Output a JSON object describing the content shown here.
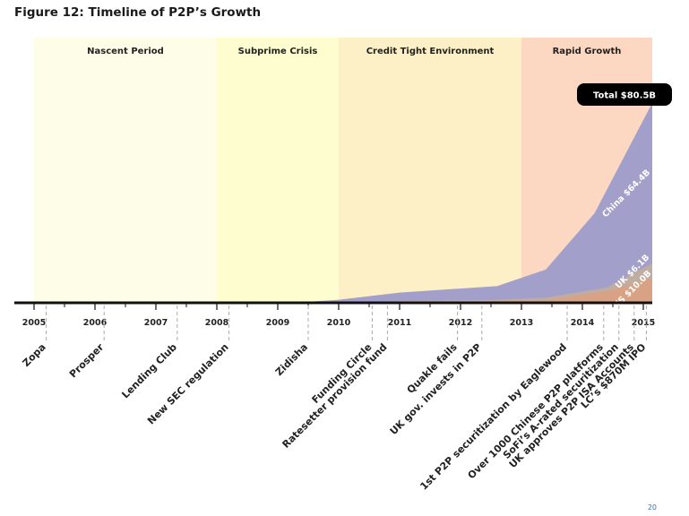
{
  "title": "Figure 12: Timeline of P2P’s Growth",
  "page_number": "20",
  "chart_data": {
    "type": "area",
    "title": "Figure 12: Timeline of P2P’s Growth",
    "xlabel": "",
    "ylabel": "",
    "xlim": [
      2005,
      2015.2
    ],
    "x_ticks": [
      "2005",
      "2006",
      "2007",
      "2008",
      "2009",
      "2010",
      "2011",
      "2012",
      "2013",
      "2014",
      "2015"
    ],
    "periods": [
      {
        "label": "Nascent Period",
        "start": 2005,
        "end": 2008,
        "color": "#fefde8"
      },
      {
        "label": "Subprime Crisis",
        "start": 2008,
        "end": 2010,
        "color": "#fdfdd0"
      },
      {
        "label": "Credit Tight Environment",
        "start": 2010,
        "end": 2013,
        "color": "#fdf0c6"
      },
      {
        "label": "Rapid Growth",
        "start": 2013,
        "end": 2015.2,
        "color": "#fcd8c3"
      }
    ],
    "series_stack_order": [
      "US",
      "UK",
      "China"
    ],
    "series": [
      {
        "name": "US $10.0B",
        "color": "#d9a284",
        "points": [
          [
            2009.25,
            0
          ],
          [
            2010.6,
            0.2
          ],
          [
            2012.6,
            0.6
          ],
          [
            2013.4,
            1.0
          ],
          [
            2014.4,
            4.5
          ],
          [
            2015.2,
            10.0
          ]
        ]
      },
      {
        "name": "UK $6.1B",
        "color": "#bfada2",
        "points": [
          [
            2009.25,
            0
          ],
          [
            2010.6,
            0.5
          ],
          [
            2012.6,
            1.2
          ],
          [
            2013.4,
            2.0
          ],
          [
            2014.4,
            6.0
          ],
          [
            2015.2,
            16.1
          ]
        ]
      },
      {
        "name": "China $64.4B",
        "color": "#a29fca",
        "points": [
          [
            2009.25,
            0
          ],
          [
            2010.0,
            1.2
          ],
          [
            2011.0,
            4.0
          ],
          [
            2012.6,
            6.5
          ],
          [
            2013.4,
            13.0
          ],
          [
            2014.2,
            35.0
          ],
          [
            2015.2,
            80.5
          ]
        ]
      }
    ],
    "total_label": "Total $80.5B",
    "events": [
      {
        "label": "Zopa",
        "x": 2005.2
      },
      {
        "label": "Prosper",
        "x": 2006.15
      },
      {
        "label": "Lending Club",
        "x": 2007.35
      },
      {
        "label": "New SEC regulation",
        "x": 2008.2
      },
      {
        "label": "Zidisha",
        "x": 2009.5
      },
      {
        "label": "Funding Circle",
        "x": 2010.55
      },
      {
        "label": "Ratesetter provision fund",
        "x": 2010.8
      },
      {
        "label": "Quakle fails",
        "x": 2011.95
      },
      {
        "label": "UK gov. invests in P2P",
        "x": 2012.35
      },
      {
        "label": "1st P2P securitization by Eaglewood",
        "x": 2013.75
      },
      {
        "label": "Over 1000 Chinese P2P platforms",
        "x": 2014.35
      },
      {
        "label": "SoFi’s A-rated securitization",
        "x": 2014.6
      },
      {
        "label": "UK approves P2P ISA Accounts",
        "x": 2014.85
      },
      {
        "label": "LC’s $870M IPO",
        "x": 2015.05
      }
    ]
  }
}
